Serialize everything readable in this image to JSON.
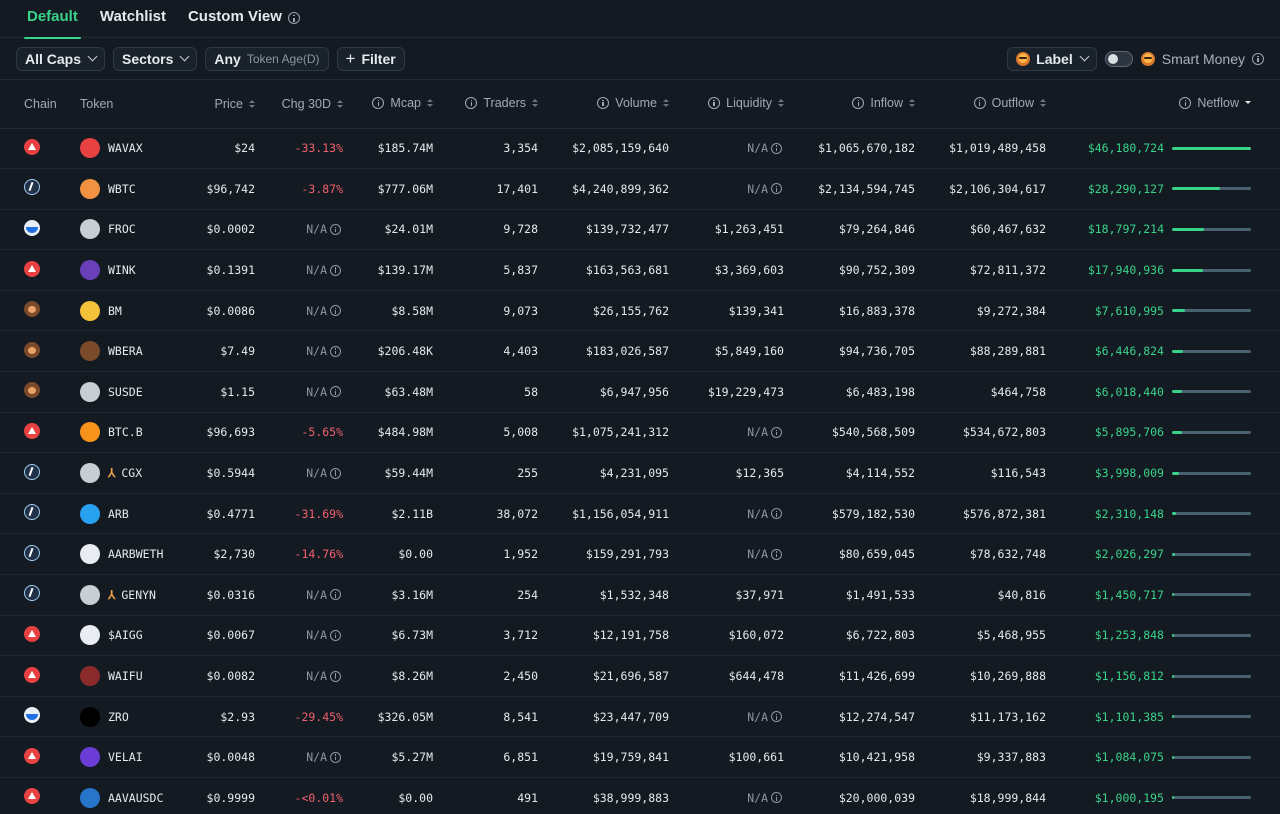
{
  "tabs": [
    {
      "label": "Default",
      "active": true
    },
    {
      "label": "Watchlist",
      "active": false
    },
    {
      "label": "Custom View",
      "active": false,
      "info": true
    }
  ],
  "filters": {
    "caps": "All Caps",
    "sectors": "Sectors",
    "token_age_value": "Any",
    "token_age_label": "Token Age(D)",
    "filter_button": "Filter",
    "label_dropdown": "Label",
    "smart_money_label": "Smart Money"
  },
  "columns": {
    "chain": "Chain",
    "token": "Token",
    "price": "Price",
    "chg30d": "Chg 30D",
    "mcap": "Mcap",
    "traders": "Traders",
    "volume": "Volume",
    "liquidity": "Liquidity",
    "inflow": "Inflow",
    "outflow": "Outflow",
    "netflow": "Netflow"
  },
  "na_text": "N/A",
  "colors": {
    "accent": "#3ad38a",
    "negative": "#f0616d",
    "background": "#131a22"
  },
  "rows": [
    {
      "chain": "avalanche",
      "token": "WAVAX",
      "icon": "avax-token-icon",
      "price": "$24",
      "chg30d": "-33.13%",
      "mcap": "$185.74M",
      "traders": "3,354",
      "volume": "$2,085,159,640",
      "liquidity": "N/A",
      "inflow": "$1,065,670,182",
      "outflow": "$1,019,489,458",
      "netflow": "$46,180,724",
      "netflow_share": 1.0
    },
    {
      "chain": "arbitrum",
      "token": "WBTC",
      "icon": "wbtc-token-icon",
      "price": "$96,742",
      "chg30d": "-3.87%",
      "mcap": "$777.06M",
      "traders": "17,401",
      "volume": "$4,240,899,362",
      "liquidity": "N/A",
      "inflow": "$2,134,594,745",
      "outflow": "$2,106,304,617",
      "netflow": "$28,290,127",
      "netflow_share": 0.61
    },
    {
      "chain": "base",
      "token": "FROC",
      "icon": "froc-token-icon",
      "price": "$0.0002",
      "chg30d": "N/A",
      "mcap": "$24.01M",
      "traders": "9,728",
      "volume": "$139,732,477",
      "liquidity": "$1,263,451",
      "inflow": "$79,264,846",
      "outflow": "$60,467,632",
      "netflow": "$18,797,214",
      "netflow_share": 0.41
    },
    {
      "chain": "avalanche",
      "token": "WINK",
      "icon": "wink-token-icon",
      "price": "$0.1391",
      "chg30d": "N/A",
      "mcap": "$139.17M",
      "traders": "5,837",
      "volume": "$163,563,681",
      "liquidity": "$3,369,603",
      "inflow": "$90,752,309",
      "outflow": "$72,811,372",
      "netflow": "$17,940,936",
      "netflow_share": 0.39
    },
    {
      "chain": "berachain",
      "token": "BM",
      "icon": "bm-token-icon",
      "price": "$0.0086",
      "chg30d": "N/A",
      "mcap": "$8.58M",
      "traders": "9,073",
      "volume": "$26,155,762",
      "liquidity": "$139,341",
      "inflow": "$16,883,378",
      "outflow": "$9,272,384",
      "netflow": "$7,610,995",
      "netflow_share": 0.165
    },
    {
      "chain": "berachain",
      "token": "WBERA",
      "icon": "wbera-token-icon",
      "price": "$7.49",
      "chg30d": "N/A",
      "mcap": "$206.48K",
      "traders": "4,403",
      "volume": "$183,026,587",
      "liquidity": "$5,849,160",
      "inflow": "$94,736,705",
      "outflow": "$88,289,881",
      "netflow": "$6,446,824",
      "netflow_share": 0.14
    },
    {
      "chain": "berachain",
      "token": "SUSDE",
      "icon": "susde-token-icon",
      "price": "$1.15",
      "chg30d": "N/A",
      "mcap": "$63.48M",
      "traders": "58",
      "volume": "$6,947,956",
      "liquidity": "$19,229,473",
      "inflow": "$6,483,198",
      "outflow": "$464,758",
      "netflow": "$6,018,440",
      "netflow_share": 0.13
    },
    {
      "chain": "avalanche",
      "token": "BTC.B",
      "icon": "btcb-token-icon",
      "price": "$96,693",
      "chg30d": "-5.65%",
      "mcap": "$484.98M",
      "traders": "5,008",
      "volume": "$1,075,241,312",
      "liquidity": "N/A",
      "inflow": "$540,568,509",
      "outflow": "$534,672,803",
      "netflow": "$5,895,706",
      "netflow_share": 0.128
    },
    {
      "chain": "arbitrum",
      "token": "CGX",
      "icon": "cgx-token-icon",
      "price": "$0.5944",
      "chg30d": "N/A",
      "mcap": "$59.44M",
      "traders": "255",
      "volume": "$4,231,095",
      "liquidity": "$12,365",
      "inflow": "$4,114,552",
      "outflow": "$116,543",
      "netflow": "$3,998,009",
      "netflow_share": 0.087
    },
    {
      "chain": "arbitrum",
      "token": "ARB",
      "icon": "arb-token-icon",
      "price": "$0.4771",
      "chg30d": "-31.69%",
      "mcap": "$2.11B",
      "traders": "38,072",
      "volume": "$1,156,054,911",
      "liquidity": "N/A",
      "inflow": "$579,182,530",
      "outflow": "$576,872,381",
      "netflow": "$2,310,148",
      "netflow_share": 0.05
    },
    {
      "chain": "arbitrum",
      "token": "AARBWETH",
      "icon": "aarbweth-token-icon",
      "price": "$2,730",
      "chg30d": "-14.76%",
      "mcap": "$0.00",
      "traders": "1,952",
      "volume": "$159,291,793",
      "liquidity": "N/A",
      "inflow": "$80,659,045",
      "outflow": "$78,632,748",
      "netflow": "$2,026,297",
      "netflow_share": 0.044
    },
    {
      "chain": "arbitrum",
      "token": "GENYN",
      "icon": "genyn-token-icon",
      "price": "$0.0316",
      "chg30d": "N/A",
      "mcap": "$3.16M",
      "traders": "254",
      "volume": "$1,532,348",
      "liquidity": "$37,971",
      "inflow": "$1,491,533",
      "outflow": "$40,816",
      "netflow": "$1,450,717",
      "netflow_share": 0.031
    },
    {
      "chain": "avalanche",
      "token": "$AIGG",
      "icon": "aigg-token-icon",
      "price": "$0.0067",
      "chg30d": "N/A",
      "mcap": "$6.73M",
      "traders": "3,712",
      "volume": "$12,191,758",
      "liquidity": "$160,072",
      "inflow": "$6,722,803",
      "outflow": "$5,468,955",
      "netflow": "$1,253,848",
      "netflow_share": 0.027
    },
    {
      "chain": "avalanche",
      "token": "WAIFU",
      "icon": "waifu-token-icon",
      "price": "$0.0082",
      "chg30d": "N/A",
      "mcap": "$8.26M",
      "traders": "2,450",
      "volume": "$21,696,587",
      "liquidity": "$644,478",
      "inflow": "$11,426,699",
      "outflow": "$10,269,888",
      "netflow": "$1,156,812",
      "netflow_share": 0.025
    },
    {
      "chain": "base",
      "token": "ZRO",
      "icon": "zro-token-icon",
      "price": "$2.93",
      "chg30d": "-29.45%",
      "mcap": "$326.05M",
      "traders": "8,541",
      "volume": "$23,447,709",
      "liquidity": "N/A",
      "inflow": "$12,274,547",
      "outflow": "$11,173,162",
      "netflow": "$1,101,385",
      "netflow_share": 0.024
    },
    {
      "chain": "avalanche",
      "token": "VELAI",
      "icon": "velai-token-icon",
      "price": "$0.0048",
      "chg30d": "N/A",
      "mcap": "$5.27M",
      "traders": "6,851",
      "volume": "$19,759,841",
      "liquidity": "$100,661",
      "inflow": "$10,421,958",
      "outflow": "$9,337,883",
      "netflow": "$1,084,075",
      "netflow_share": 0.023
    },
    {
      "chain": "avalanche",
      "token": "AAVAUSDC",
      "icon": "aavausdc-token-icon",
      "price": "$0.9999",
      "chg30d": "-<0.01%",
      "mcap": "$0.00",
      "traders": "491",
      "volume": "$38,999,883",
      "liquidity": "N/A",
      "inflow": "$20,000,039",
      "outflow": "$18,999,844",
      "netflow": "$1,000,195",
      "netflow_share": 0.022
    }
  ]
}
